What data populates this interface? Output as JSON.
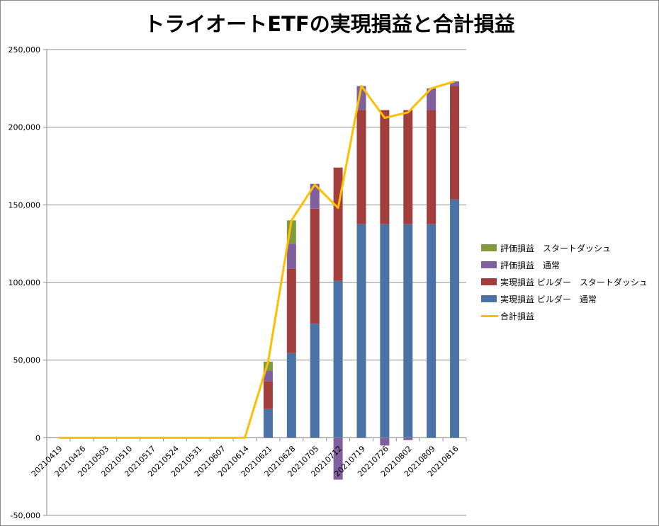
{
  "chart_data": {
    "type": "bar",
    "stacked": true,
    "title": "トライオートETFの実現損益と合計損益",
    "categories": [
      "20210419",
      "20210426",
      "20210503",
      "20210510",
      "20210517",
      "20210524",
      "20210531",
      "20210607",
      "20210614",
      "20210621",
      "20210628",
      "20210705",
      "20210712",
      "20210719",
      "20210726",
      "20210802",
      "20210809",
      "20210816"
    ],
    "ylim": [
      -50000,
      250000
    ],
    "yticks": [
      {
        "value": 250000,
        "label": "250,000"
      },
      {
        "value": 200000,
        "label": "200,000"
      },
      {
        "value": 150000,
        "label": "150,000"
      },
      {
        "value": 100000,
        "label": "100,000"
      },
      {
        "value": 50000,
        "label": "50,000"
      },
      {
        "value": 0,
        "label": "0"
      },
      {
        "value": -50000,
        "label": "-50,000"
      }
    ],
    "negative_tick_color": "#ff0000",
    "grid": "horizontal",
    "legend_position": "right",
    "series": [
      {
        "name": "実現損益 ビルダー　通常",
        "color": "#4a72a6",
        "values": [
          0,
          0,
          0,
          0,
          0,
          0,
          0,
          0,
          0,
          18500,
          54500,
          73500,
          101000,
          137500,
          137500,
          137500,
          137500,
          153500
        ]
      },
      {
        "name": "実現損益 ビルダー　スタートダッシュ",
        "color": "#a23f3c",
        "values": [
          0,
          0,
          0,
          0,
          0,
          0,
          0,
          0,
          0,
          18000,
          54500,
          74000,
          73000,
          73500,
          73500,
          73500,
          73500,
          73000
        ]
      },
      {
        "name": "評価損益　通常",
        "color": "#7f5f9d",
        "values": [
          0,
          0,
          0,
          0,
          0,
          0,
          0,
          0,
          0,
          6500,
          16000,
          16000,
          -27000,
          15500,
          -5000,
          -1500,
          14000,
          3000
        ]
      },
      {
        "name": "評価損益　スタートダッシュ",
        "color": "#7f9b3e",
        "values": [
          0,
          0,
          0,
          0,
          0,
          0,
          0,
          0,
          0,
          6000,
          15000,
          0,
          0,
          0,
          0,
          0,
          0,
          0
        ]
      },
      {
        "name": "合計損益",
        "color": "#ffbf00",
        "type": "line",
        "values": [
          0,
          0,
          0,
          0,
          0,
          0,
          0,
          0,
          0,
          49000,
          140000,
          163000,
          148000,
          226500,
          206000,
          209500,
          225000,
          229500
        ]
      }
    ],
    "legend_order": [
      "評価損益　スタートダッシュ",
      "評価損益　通常",
      "実現損益 ビルダー　スタートダッシュ",
      "実現損益 ビルダー　通常",
      "合計損益"
    ]
  }
}
